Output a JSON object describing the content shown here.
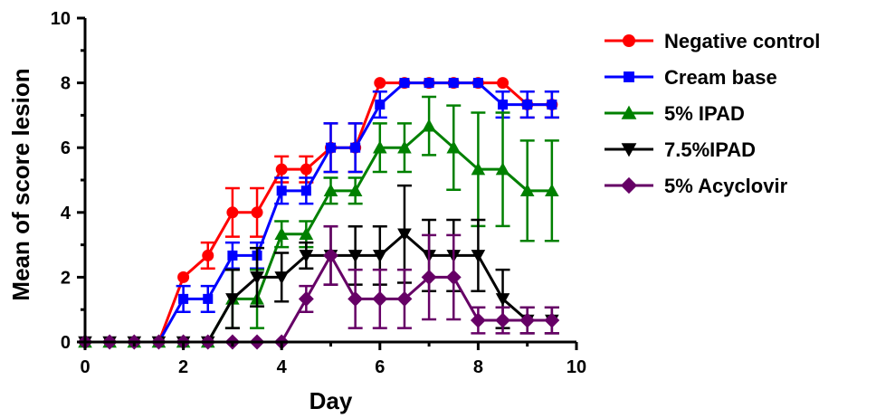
{
  "chart_data": {
    "type": "line",
    "title": "",
    "xlabel": "Day",
    "ylabel": "Mean of score lesion",
    "xlim": [
      0,
      10
    ],
    "ylim": [
      0,
      10
    ],
    "xticks": [
      0,
      2,
      4,
      6,
      8,
      10
    ],
    "yticks": [
      0,
      2,
      4,
      6,
      8,
      10
    ],
    "grid": false,
    "legend_position": "top-right",
    "x": [
      0,
      0.5,
      1,
      1.5,
      2,
      2.5,
      3,
      3.5,
      4,
      4.5,
      5,
      5.5,
      6,
      6.5,
      7,
      7.5,
      8,
      8.5,
      9,
      9.5
    ],
    "series": [
      {
        "name": "Negative control",
        "color": "#ff0000",
        "marker": "circle",
        "values": [
          0,
          0,
          0,
          0,
          2,
          2.67,
          4,
          4,
          5.33,
          5.33,
          6,
          6,
          8,
          8,
          8,
          8,
          8,
          8,
          7.33,
          7.33
        ],
        "errors": [
          0,
          0,
          0,
          0,
          0,
          0.4,
          0.75,
          0.75,
          0.4,
          0.4,
          0.75,
          0.75,
          0,
          0,
          0,
          0,
          0,
          0,
          0.4,
          0.4
        ]
      },
      {
        "name": "Cream base",
        "color": "#0000ff",
        "marker": "square",
        "values": [
          0,
          0,
          0,
          0,
          1.33,
          1.33,
          2.67,
          2.67,
          4.67,
          4.67,
          6,
          6,
          7.33,
          8,
          8,
          8,
          8,
          7.33,
          7.33,
          7.33
        ],
        "errors": [
          0,
          0,
          0,
          0,
          0.4,
          0.4,
          0.4,
          0.4,
          0.4,
          0.4,
          0.75,
          0.75,
          0.4,
          0,
          0,
          0,
          0,
          0.4,
          0.4,
          0.4
        ]
      },
      {
        "name": "5% IPAD",
        "color": "#008000",
        "marker": "triangle-up",
        "values": [
          0,
          0,
          0,
          0,
          0,
          0,
          1.33,
          1.33,
          3.33,
          3.33,
          4.67,
          4.67,
          6,
          6,
          6.67,
          6,
          5.33,
          5.33,
          4.67,
          4.67
        ],
        "errors": [
          0,
          0,
          0,
          0,
          0,
          0,
          0.9,
          0.9,
          0.4,
          0.4,
          0.4,
          0.4,
          0.75,
          0.75,
          0.9,
          1.3,
          1.75,
          1.75,
          1.55,
          1.55
        ]
      },
      {
        "name": "7.5%IPAD",
        "color": "#000000",
        "marker": "triangle-down",
        "values": [
          0,
          0,
          0,
          0,
          0,
          0,
          1.33,
          2,
          2,
          2.67,
          2.67,
          2.67,
          2.67,
          3.33,
          2.67,
          2.67,
          2.67,
          1.33,
          0.67,
          0.67
        ],
        "errors": [
          0,
          0,
          0,
          0,
          0,
          0,
          0.9,
          0.9,
          0.75,
          0.4,
          0.9,
          0.9,
          0.9,
          1.5,
          1.1,
          1.1,
          1.1,
          0.9,
          0.4,
          0.4
        ]
      },
      {
        "name": "5% Acyclovir",
        "color": "#660066",
        "marker": "diamond",
        "values": [
          0,
          0,
          0,
          0,
          0,
          0,
          0,
          0,
          0,
          1.33,
          2.67,
          1.33,
          1.33,
          1.33,
          2,
          2,
          0.67,
          0.67,
          0.67,
          0.67
        ],
        "errors": [
          0,
          0,
          0,
          0,
          0,
          0,
          0,
          0,
          0,
          0.4,
          0.9,
          0.9,
          0.9,
          0.9,
          1.3,
          1.3,
          0.4,
          0.4,
          0.4,
          0.4
        ]
      }
    ]
  }
}
